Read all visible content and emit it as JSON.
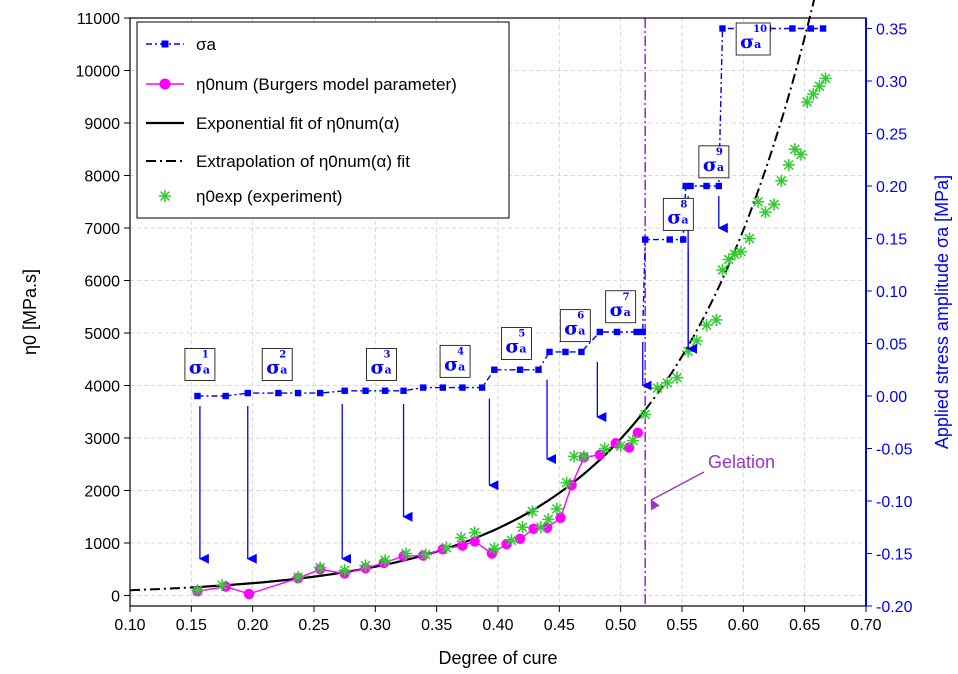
{
  "chart_data": {
    "type": "line",
    "xlabel": "Degree of cure",
    "ylabel": "η0 [MPa.s]",
    "y2label": "Applied stress amplitude σa [MPa]",
    "xlim": [
      0.1,
      0.7
    ],
    "ylim": [
      -200,
      11000
    ],
    "y2lim": [
      -0.2,
      0.36
    ],
    "x_ticks": [
      "0.10",
      "0.15",
      "0.20",
      "0.25",
      "0.30",
      "0.35",
      "0.40",
      "0.45",
      "0.50",
      "0.55",
      "0.60",
      "0.65",
      "0.70"
    ],
    "y_ticks": [
      "0",
      "1000",
      "2000",
      "3000",
      "4000",
      "5000",
      "6000",
      "7000",
      "8000",
      "9000",
      "10000",
      "11000"
    ],
    "y2_ticks": [
      "-0.20",
      "-0.15",
      "-0.10",
      "-0.05",
      "0.00",
      "0.05",
      "0.10",
      "0.15",
      "0.20",
      "0.25",
      "0.30",
      "0.35"
    ],
    "grid": true,
    "legend_position": "top-left",
    "colors": {
      "sigma": "#0000ff",
      "num": "#ff00ff",
      "fit": "#000000",
      "exp": "#33cc33",
      "gelation": "#9933cc"
    },
    "series": [
      {
        "name": "σa",
        "axis": "right",
        "x": [
          0.155,
          0.178,
          0.196,
          0.221,
          0.237,
          0.255,
          0.275,
          0.292,
          0.308,
          0.323,
          0.339,
          0.355,
          0.371,
          0.387,
          0.397,
          0.418,
          0.433,
          0.442,
          0.455,
          0.468,
          0.483,
          0.497,
          0.513,
          0.518,
          0.52,
          0.54,
          0.551,
          0.553,
          0.557,
          0.57,
          0.58,
          0.583,
          0.6,
          0.62,
          0.64,
          0.655,
          0.665
        ],
        "y": [
          0.0,
          0.0,
          0.0028,
          0.0028,
          0.0028,
          0.0028,
          0.005,
          0.005,
          0.005,
          0.005,
          0.008,
          0.008,
          0.008,
          0.008,
          0.025,
          0.025,
          0.025,
          0.042,
          0.042,
          0.042,
          0.061,
          0.061,
          0.061,
          0.061,
          0.149,
          0.149,
          0.149,
          0.2,
          0.2,
          0.2,
          0.2,
          0.35,
          0.35,
          0.35,
          0.35,
          0.35,
          0.35
        ]
      },
      {
        "name": "η0num (Burgers model parameter)",
        "axis": "left",
        "x": [
          0.155,
          0.178,
          0.197,
          0.237,
          0.255,
          0.275,
          0.292,
          0.307,
          0.323,
          0.339,
          0.355,
          0.371,
          0.381,
          0.395,
          0.407,
          0.418,
          0.429,
          0.44,
          0.451,
          0.46,
          0.47,
          0.483,
          0.496,
          0.507,
          0.514
        ],
        "y": [
          80,
          170,
          30,
          330,
          500,
          420,
          520,
          620,
          750,
          760,
          880,
          950,
          1030,
          800,
          980,
          1080,
          1270,
          1290,
          1480,
          2100,
          2630,
          2680,
          2900,
          2820,
          3100
        ]
      },
      {
        "name": "Exponential fit of η0num(α)",
        "axis": "left",
        "formula": "a*exp(b*alpha)",
        "a": 43.2,
        "b": 8.47,
        "x_range": [
          0.15,
          0.52
        ]
      },
      {
        "name": "Extrapolation of η0num(α) fit",
        "axis": "left",
        "x_range": [
          [
            0.1,
            0.15
          ],
          [
            0.52,
            0.69
          ]
        ]
      },
      {
        "name": "η0exp (experiment)",
        "axis": "left",
        "x": [
          0.155,
          0.175,
          0.237,
          0.255,
          0.275,
          0.292,
          0.308,
          0.325,
          0.341,
          0.358,
          0.37,
          0.381,
          0.397,
          0.411,
          0.42,
          0.428,
          0.435,
          0.441,
          0.448,
          0.456,
          0.462,
          0.47,
          0.487,
          0.5,
          0.51,
          0.52,
          0.53,
          0.538,
          0.546,
          0.555,
          0.562,
          0.57,
          0.578,
          0.583,
          0.588,
          0.593,
          0.598,
          0.605,
          0.612,
          0.618,
          0.625,
          0.631,
          0.637,
          0.642,
          0.647,
          0.652,
          0.657,
          0.662,
          0.667
        ],
        "y": [
          100,
          200,
          350,
          530,
          480,
          570,
          670,
          800,
          780,
          910,
          1100,
          1200,
          900,
          1050,
          1300,
          1600,
          1300,
          1450,
          1650,
          2150,
          2650,
          2650,
          2800,
          2850,
          2950,
          3450,
          3950,
          4050,
          4150,
          4650,
          4850,
          5150,
          5250,
          6200,
          6400,
          6500,
          6550,
          6800,
          7500,
          7300,
          7450,
          7900,
          8200,
          8500,
          8400,
          9400,
          9550,
          9700,
          9850
        ]
      }
    ],
    "annotations": [
      {
        "text": "σa1",
        "base": "σ",
        "sub": "a",
        "sup": "1",
        "x": 0.157,
        "y2": -0.155
      },
      {
        "text": "σa2",
        "base": "σ",
        "sub": "a",
        "sup": "2",
        "x": 0.196,
        "y2": -0.155
      },
      {
        "text": "σa3",
        "base": "σ",
        "sub": "a",
        "sup": "3",
        "x": 0.273,
        "y2": -0.155
      },
      {
        "text": "σa3",
        "base": "",
        "sub": "",
        "sup": "",
        "x": 0.323,
        "y2": -0.115
      },
      {
        "text": "σa4",
        "base": "σ",
        "sub": "a",
        "sup": "4",
        "x": 0.393,
        "y2": -0.085
      },
      {
        "text": "σa5",
        "base": "σ",
        "sub": "a",
        "sup": "5",
        "x": 0.44,
        "y2": -0.06
      },
      {
        "text": "σa6",
        "base": "σ",
        "sub": "a",
        "sup": "6",
        "x": 0.481,
        "y2": -0.02
      },
      {
        "text": "σa7",
        "base": "σ",
        "sub": "a",
        "sup": "7",
        "x": 0.518,
        "y2": 0.01
      },
      {
        "text": "σa8",
        "base": "σ",
        "sub": "a",
        "sup": "8",
        "x": 0.555,
        "y2": 0.045
      },
      {
        "text": "σa9",
        "base": "σ",
        "sub": "a",
        "sup": "9",
        "x": 0.555,
        "y2": 0.045
      },
      {
        "text": "σa10",
        "base": "σ",
        "sub": "a",
        "sup": "10",
        "x": 0.58,
        "y2": 0.16
      }
    ],
    "gelation": {
      "label": "Gelation",
      "x": 0.52
    }
  }
}
